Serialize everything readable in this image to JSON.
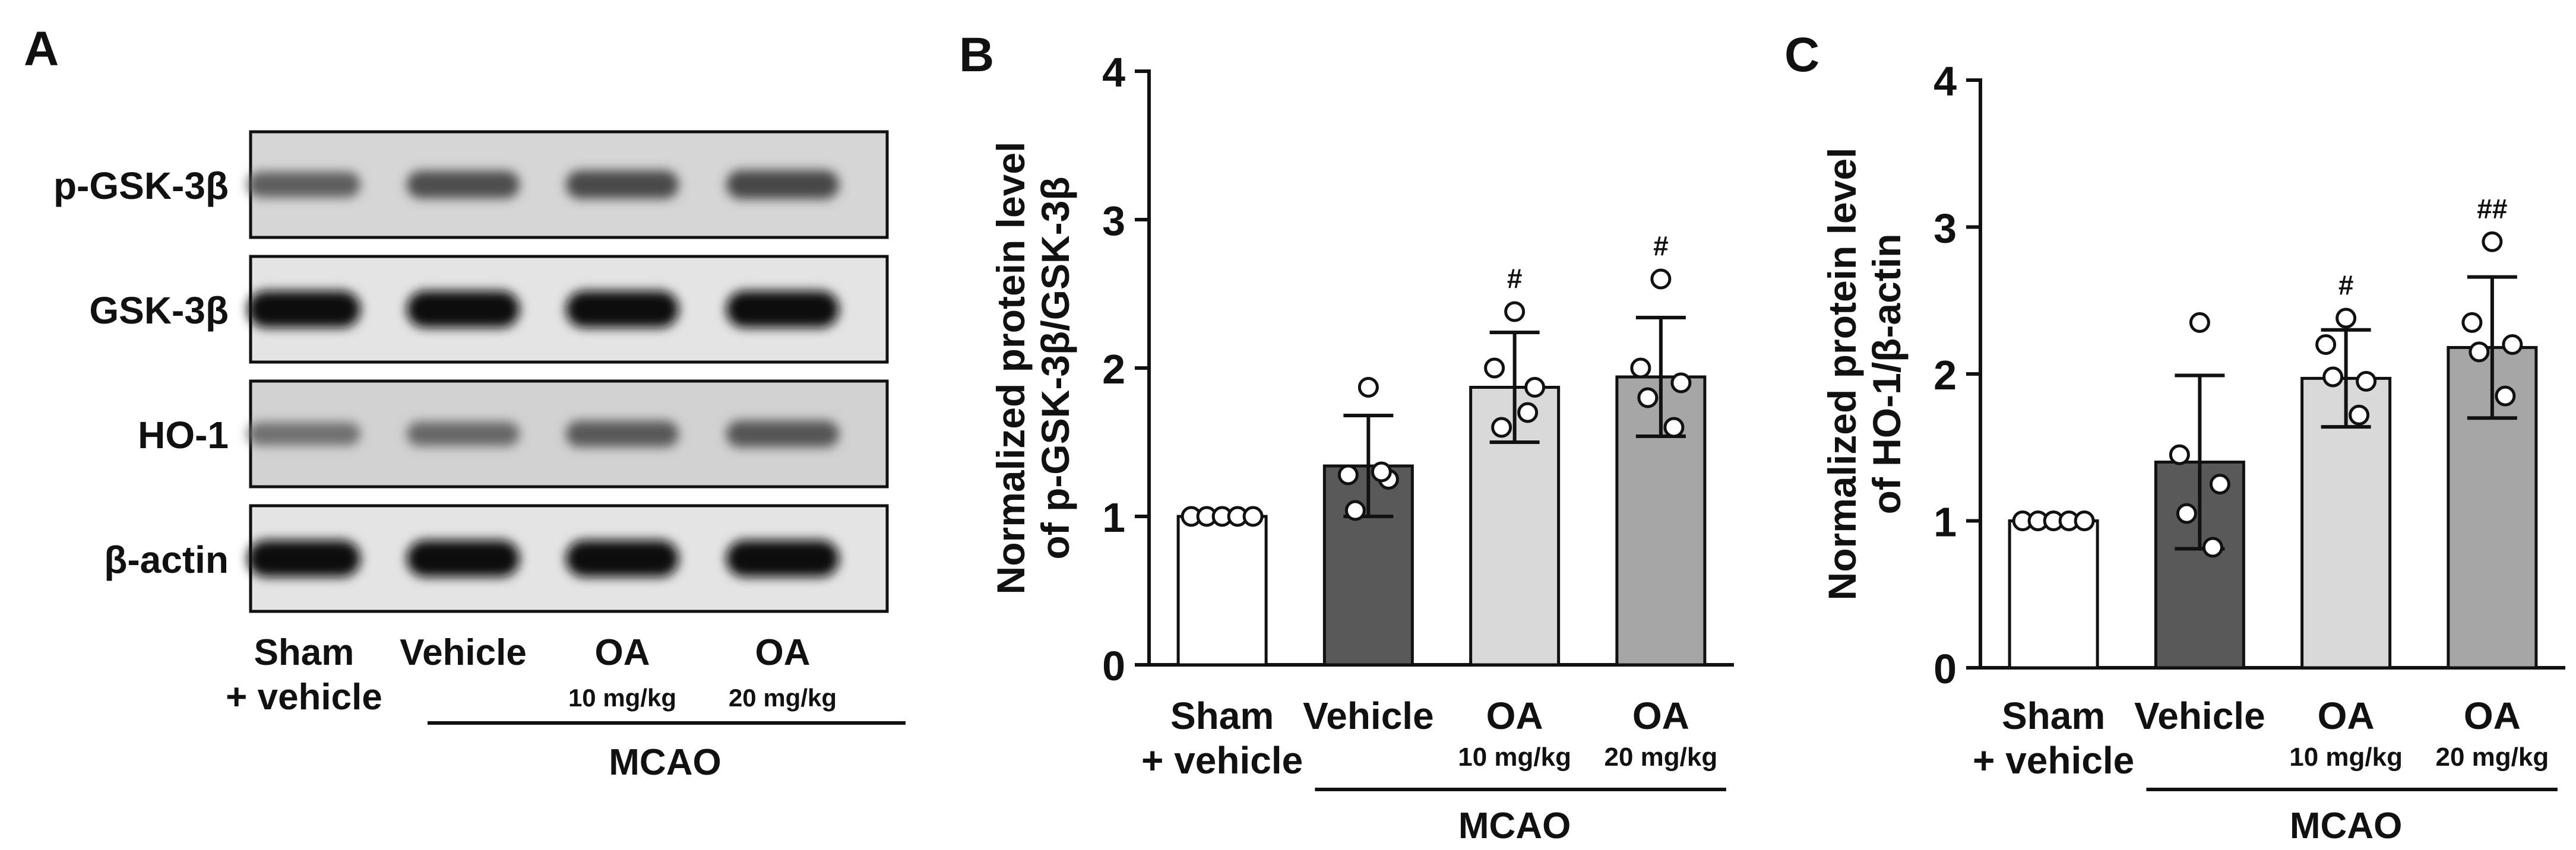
{
  "panel_a": {
    "letter": "A",
    "blots": [
      {
        "label": "p-GSK-3β",
        "intensities": [
          0.45,
          0.55,
          0.58,
          0.6
        ],
        "background": "#d6d6d6"
      },
      {
        "label": "GSK-3β",
        "intensities": [
          1.0,
          1.0,
          1.0,
          1.0
        ],
        "background": "#e4e4e4"
      },
      {
        "label": "HO-1",
        "intensities": [
          0.32,
          0.38,
          0.48,
          0.5
        ],
        "background": "#d2d2d2"
      },
      {
        "label": "β-actin",
        "intensities": [
          1.0,
          1.0,
          1.0,
          1.0
        ],
        "background": "#e4e4e4"
      }
    ],
    "lanes": [
      {
        "line1": "Sham",
        "line2": "+ vehicle",
        "small": false
      },
      {
        "line1": "Vehicle",
        "line2": "",
        "small": false
      },
      {
        "line1": "OA",
        "line2": "10 mg/kg",
        "small": true
      },
      {
        "line1": "OA",
        "line2": "20 mg/kg",
        "small": true
      }
    ],
    "group_label": "MCAO"
  },
  "chart_data": [
    {
      "panel": "B",
      "type": "bar",
      "ylabel_line1": "Normalized protein level",
      "ylabel_line2": "of p-GSK-3β/GSK-3β",
      "ylim": [
        0,
        4
      ],
      "yticks": [
        "0",
        "1",
        "2",
        "3",
        "4"
      ],
      "categories": [
        {
          "line1": "Sham",
          "line2": "+ vehicle",
          "small": false
        },
        {
          "line1": "Vehicle",
          "line2": "",
          "small": false
        },
        {
          "line1": "OA",
          "line2": "10 mg/kg",
          "small": true
        },
        {
          "line1": "OA",
          "line2": "20 mg/kg",
          "small": true
        }
      ],
      "values": [
        1.0,
        1.34,
        1.87,
        1.94
      ],
      "sd": [
        0.0,
        0.34,
        0.37,
        0.4
      ],
      "points": [
        [
          1.0,
          1.0,
          1.0,
          1.0,
          1.0
        ],
        [
          1.87,
          1.28,
          1.25,
          1.04,
          1.3
        ],
        [
          2.38,
          2.0,
          1.87,
          1.6,
          1.7
        ],
        [
          2.6,
          2.0,
          1.9,
          1.8,
          1.6
        ]
      ],
      "significance": [
        "",
        "",
        "#",
        "#"
      ],
      "bar_colors": [
        "#ffffff",
        "#595959",
        "#d9d9d9",
        "#a6a6a6"
      ],
      "group_label": "MCAO"
    },
    {
      "panel": "C",
      "type": "bar",
      "ylabel_line1": "Normalized protein level",
      "ylabel_line2": "of HO-1/β-actin",
      "ylim": [
        0,
        4
      ],
      "yticks": [
        "0",
        "1",
        "2",
        "3",
        "4"
      ],
      "categories": [
        {
          "line1": "Sham",
          "line2": "+ vehicle",
          "small": false
        },
        {
          "line1": "Vehicle",
          "line2": "",
          "small": false
        },
        {
          "line1": "OA",
          "line2": "10 mg/kg",
          "small": true
        },
        {
          "line1": "OA",
          "line2": "20 mg/kg",
          "small": true
        }
      ],
      "values": [
        1.0,
        1.4,
        1.97,
        2.18
      ],
      "sd": [
        0.0,
        0.59,
        0.33,
        0.48
      ],
      "points": [
        [
          1.0,
          1.0,
          1.0,
          1.0,
          1.0
        ],
        [
          2.35,
          1.45,
          1.25,
          1.05,
          0.82
        ],
        [
          2.38,
          2.2,
          1.95,
          1.98,
          1.72
        ],
        [
          2.9,
          2.35,
          2.2,
          2.15,
          1.85
        ]
      ],
      "significance": [
        "",
        "",
        "#",
        "##"
      ],
      "bar_colors": [
        "#ffffff",
        "#595959",
        "#d9d9d9",
        "#a6a6a6"
      ],
      "group_label": "MCAO"
    }
  ]
}
